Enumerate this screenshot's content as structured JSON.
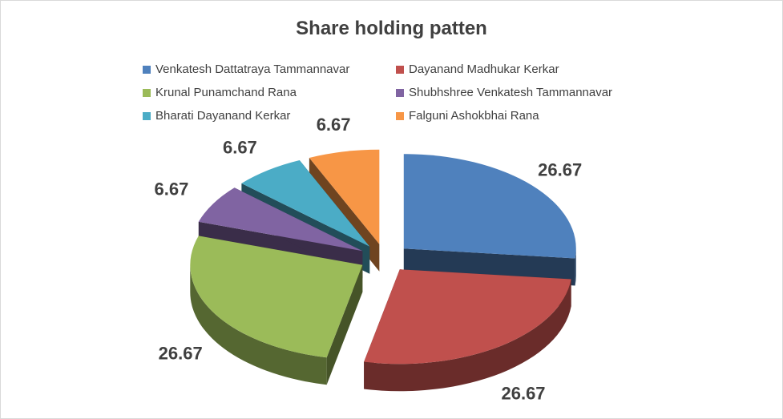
{
  "chart_data": {
    "type": "pie",
    "title": "Share holding patten",
    "legend_position": "top",
    "exploded": true,
    "three_d": true,
    "categories": [
      "Venkatesh Dattatraya Tammannavar",
      "Dayanand Madhukar  Kerkar",
      "Krunal Punamchand Rana",
      "Shubhshree Venkatesh Tammannavar",
      "Bharati Dayanand Kerkar",
      "Falguni Ashokbhai Rana"
    ],
    "values": [
      26.67,
      26.67,
      26.67,
      6.67,
      6.67,
      6.67
    ],
    "data_labels": [
      "26.67",
      "26.67",
      "26.67",
      "6.67",
      "6.67",
      "6.67"
    ],
    "colors": [
      "#4f81bd",
      "#c0504d",
      "#9bbb59",
      "#8064a2",
      "#4bacc6",
      "#f79646"
    ]
  }
}
